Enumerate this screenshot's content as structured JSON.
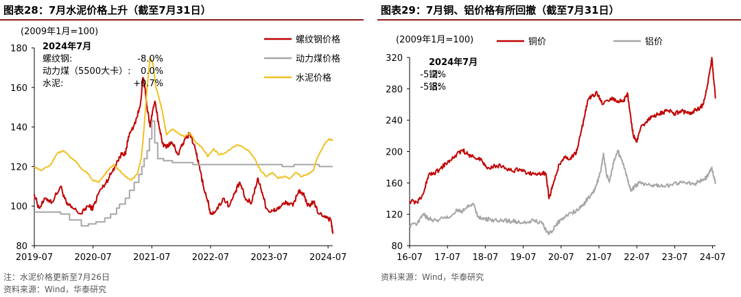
{
  "chart_data": [
    {
      "type": "line",
      "title": "图表28：7月水泥价格上升（截至7月31日）",
      "unit_label": "(2009年1月=100)",
      "x_ticks": [
        "2019-07",
        "2020-07",
        "2021-07",
        "2022-07",
        "2023-07",
        "2024-07"
      ],
      "ylim": [
        80,
        180
      ],
      "y_ticks": [
        80,
        100,
        120,
        140,
        160,
        180
      ],
      "legend": {
        "placement": "top-right",
        "entries": [
          "螺纹钢价格",
          "动力煤价格",
          "水泥价格"
        ]
      },
      "annotation": {
        "header": "2024年7月",
        "lines": [
          {
            "label": "螺纹钢:",
            "value": "-8.0%"
          },
          {
            "label": "动力煤（5500大卡）:",
            "value": "0.0%"
          },
          {
            "label": "水泥:",
            "value": "+0.7%"
          }
        ]
      },
      "series": [
        {
          "name": "螺纹钢价格",
          "color": "#c00000",
          "style": "noisy",
          "x": [
            2019.5,
            2019.58,
            2019.7,
            2019.8,
            2019.95,
            2020.05,
            2020.15,
            2020.3,
            2020.4,
            2020.5,
            2020.6,
            2020.7,
            2020.8,
            2020.9,
            2021.0,
            2021.05,
            2021.1,
            2021.2,
            2021.3,
            2021.35,
            2021.38,
            2021.42,
            2021.47,
            2021.5,
            2021.55,
            2021.62,
            2021.7,
            2021.78,
            2021.85,
            2021.95,
            2022.05,
            2022.15,
            2022.25,
            2022.32,
            2022.38,
            2022.45,
            2022.5,
            2022.6,
            2022.72,
            2022.82,
            2022.92,
            2023.0,
            2023.1,
            2023.2,
            2023.3,
            2023.38,
            2023.45,
            2023.52,
            2023.6,
            2023.7,
            2023.8,
            2023.9,
            2024.0,
            2024.08,
            2024.15,
            2024.25,
            2024.35,
            2024.45,
            2024.55,
            2024.58
          ],
          "y": [
            106,
            99,
            104,
            102,
            110,
            101,
            99,
            96,
            100,
            99,
            107,
            111,
            116,
            122,
            127,
            126,
            135,
            141,
            150,
            165,
            160,
            150,
            140,
            146,
            153,
            141,
            130,
            131,
            132,
            126,
            133,
            137,
            128,
            118,
            110,
            103,
            96,
            98,
            104,
            100,
            107,
            112,
            103,
            102,
            114,
            107,
            99,
            97,
            98,
            100,
            102,
            100,
            108,
            106,
            100,
            102,
            96,
            95,
            93,
            86
          ]
        },
        {
          "name": "动力煤价格",
          "color": "#a6a6a6",
          "style": "step",
          "x": [
            2019.5,
            2019.8,
            2019.95,
            2020.1,
            2020.3,
            2020.42,
            2020.55,
            2020.7,
            2020.8,
            2020.9,
            2020.95,
            2021.05,
            2021.12,
            2021.2,
            2021.28,
            2021.33,
            2021.37,
            2021.42,
            2021.46,
            2021.5,
            2021.55,
            2021.6,
            2021.7,
            2021.85,
            2022.0,
            2022.2,
            2022.5,
            2022.8,
            2023.0,
            2023.3,
            2023.6,
            2023.72,
            2023.8,
            2023.92,
            2024.0,
            2024.2,
            2024.35,
            2024.45,
            2024.58
          ],
          "y": [
            97,
            97,
            96,
            93,
            90,
            91,
            92,
            94,
            96,
            99,
            101,
            104,
            108,
            112,
            116,
            120,
            124,
            128,
            134,
            143,
            132,
            124,
            123,
            122,
            122,
            121,
            121,
            121,
            121,
            121,
            121,
            120,
            120,
            121,
            121,
            121,
            120,
            120,
            120
          ]
        },
        {
          "name": "水泥价格",
          "color": "#f0c020",
          "style": "smooth",
          "x": [
            2019.5,
            2019.62,
            2019.78,
            2019.9,
            2020.0,
            2020.1,
            2020.2,
            2020.3,
            2020.4,
            2020.5,
            2020.6,
            2020.7,
            2020.75,
            2020.85,
            2020.95,
            2021.05,
            2021.15,
            2021.25,
            2021.32,
            2021.37,
            2021.42,
            2021.47,
            2021.52,
            2021.57,
            2021.62,
            2021.68,
            2021.75,
            2021.85,
            2021.95,
            2022.05,
            2022.15,
            2022.25,
            2022.35,
            2022.45,
            2022.55,
            2022.65,
            2022.75,
            2022.85,
            2022.95,
            2023.05,
            2023.15,
            2023.25,
            2023.35,
            2023.45,
            2023.55,
            2023.65,
            2023.75,
            2023.85,
            2023.95,
            2024.05,
            2024.15,
            2024.25,
            2024.3,
            2024.38,
            2024.45,
            2024.52,
            2024.58
          ],
          "y": [
            120,
            118,
            121,
            127,
            128,
            125,
            123,
            119,
            117,
            113,
            112,
            116,
            118,
            121,
            118,
            115,
            113,
            116,
            124,
            140,
            160,
            175,
            172,
            160,
            155,
            148,
            136,
            139,
            137,
            135,
            137,
            132,
            130,
            125,
            129,
            126,
            127,
            129,
            131,
            130,
            128,
            124,
            118,
            115,
            117,
            114,
            115,
            114,
            117,
            115,
            116,
            118,
            123,
            128,
            132,
            134,
            133
          ]
        }
      ]
    },
    {
      "type": "line",
      "title": "图表29：7月铜、铝价格有所回撤（截至7月31日）",
      "unit_label": "(2009年1月=100)",
      "x_ticks": [
        "16-07",
        "17-07",
        "18-07",
        "19-07",
        "20-07",
        "21-07",
        "22-07",
        "23-07",
        "24-07"
      ],
      "ylim": [
        80,
        320
      ],
      "y_ticks": [
        80,
        120,
        160,
        200,
        240,
        280,
        320
      ],
      "legend": {
        "placement": "top",
        "entries": [
          "铜价",
          "铝价"
        ]
      },
      "annotation": {
        "header": "2024年7月",
        "lines": [
          {
            "label": "铜:",
            "value": "-5.2%"
          },
          {
            "label": "铝:",
            "value": "-5.8%"
          }
        ]
      },
      "series": [
        {
          "name": "铜价",
          "color": "#c00000",
          "style": "noisy",
          "x": [
            2016.5,
            2016.7,
            2016.85,
            2017.0,
            2017.15,
            2017.3,
            2017.5,
            2017.7,
            2017.9,
            2018.05,
            2018.2,
            2018.4,
            2018.55,
            2018.75,
            2018.95,
            2019.2,
            2019.4,
            2019.6,
            2019.8,
            2020.0,
            2020.1,
            2020.18,
            2020.3,
            2020.45,
            2020.6,
            2020.75,
            2020.9,
            2021.0,
            2021.1,
            2021.2,
            2021.3,
            2021.45,
            2021.6,
            2021.8,
            2022.0,
            2022.15,
            2022.25,
            2022.32,
            2022.4,
            2022.5,
            2022.6,
            2022.75,
            2022.9,
            2023.05,
            2023.2,
            2023.35,
            2023.5,
            2023.65,
            2023.8,
            2023.95,
            2024.05,
            2024.15,
            2024.25,
            2024.35,
            2024.42,
            2024.48,
            2024.53,
            2024.58
          ],
          "y": [
            137,
            135,
            145,
            170,
            172,
            178,
            186,
            195,
            202,
            196,
            193,
            190,
            178,
            182,
            181,
            175,
            178,
            172,
            171,
            173,
            172,
            140,
            160,
            184,
            192,
            192,
            198,
            220,
            240,
            265,
            270,
            275,
            260,
            268,
            265,
            264,
            275,
            250,
            222,
            212,
            230,
            238,
            245,
            247,
            250,
            252,
            248,
            252,
            250,
            250,
            253,
            255,
            260,
            280,
            300,
            320,
            292,
            268
          ]
        },
        {
          "name": "铝价",
          "color": "#a6a6a6",
          "style": "noisy",
          "x": [
            2016.5,
            2016.7,
            2016.85,
            2017.0,
            2017.2,
            2017.4,
            2017.6,
            2017.75,
            2017.9,
            2018.05,
            2018.2,
            2018.3,
            2018.45,
            2018.6,
            2018.8,
            2019.0,
            2019.2,
            2019.4,
            2019.6,
            2019.8,
            2020.0,
            2020.1,
            2020.2,
            2020.35,
            2020.5,
            2020.7,
            2020.9,
            2021.05,
            2021.2,
            2021.35,
            2021.45,
            2021.55,
            2021.62,
            2021.7,
            2021.78,
            2021.9,
            2022.0,
            2022.1,
            2022.2,
            2022.28,
            2022.35,
            2022.45,
            2022.6,
            2022.8,
            2023.0,
            2023.2,
            2023.4,
            2023.6,
            2023.8,
            2024.0,
            2024.15,
            2024.3,
            2024.4,
            2024.48,
            2024.53,
            2024.58
          ],
          "y": [
            106,
            108,
            120,
            115,
            112,
            115,
            118,
            125,
            124,
            130,
            133,
            118,
            113,
            114,
            112,
            112,
            111,
            110,
            110,
            112,
            108,
            100,
            96,
            105,
            114,
            120,
            125,
            130,
            140,
            148,
            160,
            175,
            198,
            170,
            162,
            190,
            200,
            190,
            175,
            160,
            150,
            156,
            160,
            158,
            157,
            156,
            158,
            160,
            160,
            158,
            162,
            165,
            172,
            180,
            168,
            160
          ]
        }
      ]
    }
  ],
  "notes": {
    "left_note": "注：水泥价格更新至7月26日",
    "left_source": "资料来源：Wind，华泰研究",
    "right_source": "资料来源：Wind，华泰研究"
  }
}
